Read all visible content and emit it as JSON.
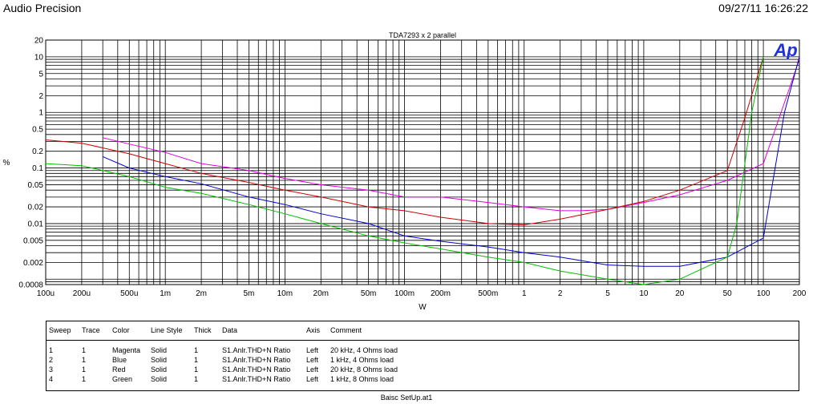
{
  "header": {
    "app_title": "Audio Precision",
    "timestamp": "09/27/11 16:26:22"
  },
  "logo_text": "Ap",
  "chart_data": {
    "type": "line",
    "title": "TDA7293 x 2 parallel",
    "xlabel": "W",
    "ylabel": "%",
    "x_scale": "log",
    "y_scale": "log",
    "xlim": [
      0.0001,
      200
    ],
    "ylim": [
      0.0008,
      20
    ],
    "grid": true,
    "x_ticks": [
      {
        "v": 0.0001,
        "label": "100u"
      },
      {
        "v": 0.0002,
        "label": "200u"
      },
      {
        "v": 0.0005,
        "label": "500u"
      },
      {
        "v": 0.001,
        "label": "1m"
      },
      {
        "v": 0.002,
        "label": "2m"
      },
      {
        "v": 0.005,
        "label": "5m"
      },
      {
        "v": 0.01,
        "label": "10m"
      },
      {
        "v": 0.02,
        "label": "20m"
      },
      {
        "v": 0.05,
        "label": "50m"
      },
      {
        "v": 0.1,
        "label": "100m"
      },
      {
        "v": 0.2,
        "label": "200m"
      },
      {
        "v": 0.5,
        "label": "500m"
      },
      {
        "v": 1,
        "label": "1"
      },
      {
        "v": 2,
        "label": "2"
      },
      {
        "v": 5,
        "label": "5"
      },
      {
        "v": 10,
        "label": "10"
      },
      {
        "v": 20,
        "label": "20"
      },
      {
        "v": 50,
        "label": "50"
      },
      {
        "v": 100,
        "label": "100"
      },
      {
        "v": 200,
        "label": "200"
      }
    ],
    "y_ticks": [
      {
        "v": 20,
        "label": "20"
      },
      {
        "v": 10,
        "label": "10"
      },
      {
        "v": 5,
        "label": "5"
      },
      {
        "v": 2,
        "label": "2"
      },
      {
        "v": 1,
        "label": "1"
      },
      {
        "v": 0.5,
        "label": "0.5"
      },
      {
        "v": 0.2,
        "label": "0.2"
      },
      {
        "v": 0.1,
        "label": "0.1"
      },
      {
        "v": 0.05,
        "label": "0.05"
      },
      {
        "v": 0.02,
        "label": "0.02"
      },
      {
        "v": 0.01,
        "label": "0.01"
      },
      {
        "v": 0.005,
        "label": "0.005"
      },
      {
        "v": 0.002,
        "label": "0.002"
      },
      {
        "v": 0.0008,
        "label": "0.0008"
      }
    ],
    "series": [
      {
        "color": "#e000e0",
        "points": [
          [
            0.0003,
            0.35
          ],
          [
            0.0005,
            0.27
          ],
          [
            0.001,
            0.19
          ],
          [
            0.002,
            0.12
          ],
          [
            0.005,
            0.09
          ],
          [
            0.01,
            0.065
          ],
          [
            0.02,
            0.05
          ],
          [
            0.05,
            0.04
          ],
          [
            0.1,
            0.03
          ],
          [
            0.2,
            0.03
          ],
          [
            0.5,
            0.024
          ],
          [
            1,
            0.02
          ],
          [
            2,
            0.017
          ],
          [
            3,
            0.017
          ],
          [
            5,
            0.018
          ],
          [
            10,
            0.024
          ],
          [
            20,
            0.033
          ],
          [
            50,
            0.06
          ],
          [
            100,
            0.12
          ],
          [
            150,
            1.5
          ],
          [
            200,
            9
          ]
        ]
      },
      {
        "color": "#0000d0",
        "points": [
          [
            0.0003,
            0.16
          ],
          [
            0.0005,
            0.1
          ],
          [
            0.001,
            0.07
          ],
          [
            0.002,
            0.052
          ],
          [
            0.005,
            0.03
          ],
          [
            0.01,
            0.022
          ],
          [
            0.02,
            0.015
          ],
          [
            0.05,
            0.01
          ],
          [
            0.1,
            0.006
          ],
          [
            0.2,
            0.0048
          ],
          [
            0.5,
            0.0038
          ],
          [
            1,
            0.003
          ],
          [
            2,
            0.0025
          ],
          [
            5,
            0.0018
          ],
          [
            10,
            0.0017
          ],
          [
            20,
            0.0017
          ],
          [
            50,
            0.0025
          ],
          [
            100,
            0.0055
          ],
          [
            150,
            1
          ],
          [
            200,
            10
          ]
        ]
      },
      {
        "color": "#d00000",
        "points": [
          [
            0.0001,
            0.32
          ],
          [
            0.0002,
            0.28
          ],
          [
            0.0005,
            0.18
          ],
          [
            0.001,
            0.12
          ],
          [
            0.002,
            0.08
          ],
          [
            0.005,
            0.055
          ],
          [
            0.01,
            0.04
          ],
          [
            0.02,
            0.03
          ],
          [
            0.05,
            0.02
          ],
          [
            0.1,
            0.017
          ],
          [
            0.2,
            0.013
          ],
          [
            0.5,
            0.01
          ],
          [
            1,
            0.0095
          ],
          [
            2,
            0.012
          ],
          [
            5,
            0.018
          ],
          [
            10,
            0.025
          ],
          [
            20,
            0.04
          ],
          [
            50,
            0.09
          ],
          [
            70,
            0.8
          ],
          [
            100,
            10
          ]
        ]
      },
      {
        "color": "#00c000",
        "points": [
          [
            0.0001,
            0.12
          ],
          [
            0.0002,
            0.11
          ],
          [
            0.0005,
            0.07
          ],
          [
            0.001,
            0.045
          ],
          [
            0.002,
            0.035
          ],
          [
            0.005,
            0.022
          ],
          [
            0.01,
            0.015
          ],
          [
            0.02,
            0.01
          ],
          [
            0.05,
            0.006
          ],
          [
            0.1,
            0.0045
          ],
          [
            0.2,
            0.0035
          ],
          [
            0.5,
            0.0025
          ],
          [
            1,
            0.002
          ],
          [
            2,
            0.0014
          ],
          [
            5,
            0.001
          ],
          [
            10,
            0.0008
          ],
          [
            20,
            0.001
          ],
          [
            50,
            0.0025
          ],
          [
            60,
            0.01
          ],
          [
            80,
            1
          ],
          [
            100,
            10
          ]
        ]
      }
    ]
  },
  "legend": {
    "headers": {
      "sweep": "Sweep",
      "trace": "Trace",
      "color": "Color",
      "line_style": "Line Style",
      "thick": "Thick",
      "data": "Data",
      "axis": "Axis",
      "comment": "Comment"
    },
    "rows": [
      {
        "sweep": "1",
        "trace": "1",
        "color": "Magenta",
        "line_style": "Solid",
        "thick": "1",
        "data": "S1.Anlr.THD+N Ratio",
        "axis": "Left",
        "comment": "20 kHz, 4 Ohms load"
      },
      {
        "sweep": "2",
        "trace": "1",
        "color": "Blue",
        "line_style": "Solid",
        "thick": "1",
        "data": "S1.Anlr.THD+N Ratio",
        "axis": "Left",
        "comment": "1 kHz, 4 Ohms load"
      },
      {
        "sweep": "3",
        "trace": "1",
        "color": "Red",
        "line_style": "Solid",
        "thick": "1",
        "data": "S1.Anlr.THD+N Ratio",
        "axis": "Left",
        "comment": "20 kHz, 8 Ohms load"
      },
      {
        "sweep": "4",
        "trace": "1",
        "color": "Green",
        "line_style": "Solid",
        "thick": "1",
        "data": "S1.Anlr.THD+N Ratio",
        "axis": "Left",
        "comment": "1 kHz, 8 Ohms load"
      }
    ]
  },
  "footer": "Baisc SetUp.at1"
}
